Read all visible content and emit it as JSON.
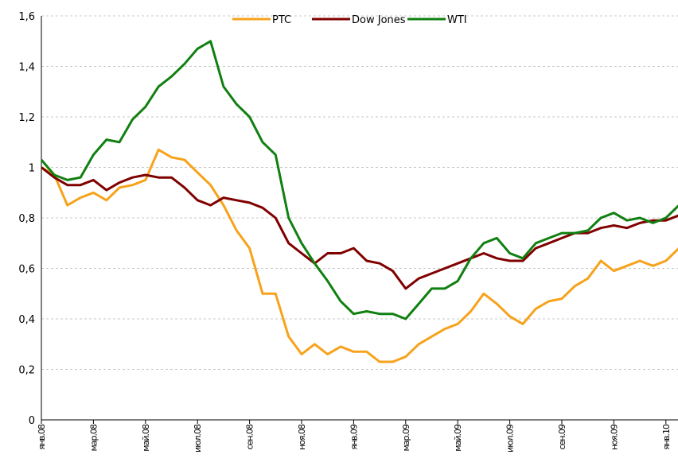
{
  "chart_data": {
    "type": "line",
    "categories": [
      "янв.08",
      null,
      null,
      null,
      "мар.08",
      null,
      null,
      null,
      "май.08",
      null,
      null,
      null,
      "июл.08",
      null,
      null,
      null,
      "сен.08",
      null,
      null,
      null,
      "ноя.08",
      null,
      null,
      null,
      "янв.09",
      null,
      null,
      null,
      "мар.09",
      null,
      null,
      null,
      "май.09",
      null,
      null,
      null,
      "июл.09",
      null,
      null,
      null,
      "сен.09",
      null,
      null,
      null,
      "ноя.09",
      null,
      null,
      null,
      "янв.10",
      null
    ],
    "series": [
      {
        "name": "PTC",
        "color": "#f7a21b",
        "values": [
          1.0,
          0.97,
          0.85,
          0.88,
          0.9,
          0.87,
          0.92,
          0.93,
          0.95,
          1.07,
          1.04,
          1.03,
          0.98,
          0.93,
          0.85,
          0.75,
          0.68,
          0.5,
          0.5,
          0.33,
          0.26,
          0.3,
          0.26,
          0.29,
          0.27,
          0.27,
          0.23,
          0.23,
          0.25,
          0.3,
          0.33,
          0.36,
          0.38,
          0.43,
          0.5,
          0.46,
          0.41,
          0.38,
          0.44,
          0.47,
          0.48,
          0.53,
          0.56,
          0.63,
          0.59,
          0.61,
          0.63,
          0.61,
          0.63,
          0.68
        ]
      },
      {
        "name": "Dow Jones",
        "color": "#800000",
        "values": [
          1.0,
          0.96,
          0.93,
          0.93,
          0.95,
          0.91,
          0.94,
          0.96,
          0.97,
          0.96,
          0.96,
          0.92,
          0.87,
          0.85,
          0.88,
          0.87,
          0.86,
          0.84,
          0.8,
          0.7,
          0.66,
          0.62,
          0.66,
          0.66,
          0.68,
          0.63,
          0.62,
          0.59,
          0.52,
          0.56,
          0.58,
          0.6,
          0.62,
          0.64,
          0.66,
          0.64,
          0.63,
          0.63,
          0.68,
          0.7,
          0.72,
          0.74,
          0.74,
          0.76,
          0.77,
          0.76,
          0.78,
          0.79,
          0.79,
          0.81
        ]
      },
      {
        "name": "WTI",
        "color": "#108010",
        "values": [
          1.03,
          0.97,
          0.95,
          0.96,
          1.05,
          1.11,
          1.1,
          1.19,
          1.24,
          1.32,
          1.36,
          1.41,
          1.47,
          1.5,
          1.32,
          1.25,
          1.2,
          1.1,
          1.05,
          0.8,
          0.7,
          0.62,
          0.55,
          0.47,
          0.42,
          0.43,
          0.42,
          0.42,
          0.4,
          0.46,
          0.52,
          0.52,
          0.55,
          0.64,
          0.7,
          0.72,
          0.66,
          0.64,
          0.7,
          0.72,
          0.74,
          0.74,
          0.75,
          0.8,
          0.82,
          0.79,
          0.8,
          0.78,
          0.8,
          0.85
        ]
      }
    ],
    "ylim": [
      0,
      1.6
    ],
    "yticks": [
      0,
      {
        "value": 0.2,
        "label": "0,2"
      },
      {
        "value": 0.4,
        "label": "0,4"
      },
      {
        "value": 0.6,
        "label": "0,6"
      },
      {
        "value": 0.8,
        "label": "0,8"
      },
      1,
      {
        "value": 1.2,
        "label": "1,2"
      },
      {
        "value": 1.4,
        "label": "1,4"
      },
      {
        "value": 1.6,
        "label": "1,6"
      }
    ],
    "grid": true,
    "legend": "top"
  }
}
